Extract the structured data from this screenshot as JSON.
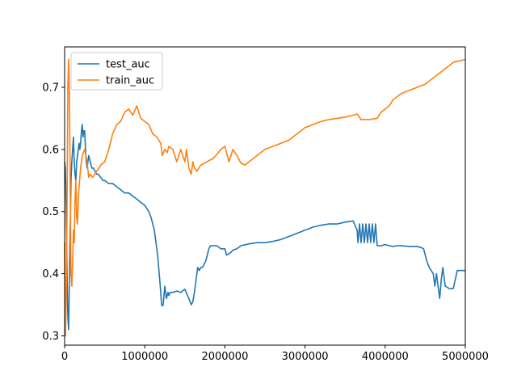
{
  "chart_data": {
    "type": "line",
    "title": "",
    "xlabel": "",
    "ylabel": "",
    "xlim": [
      0,
      5000000
    ],
    "ylim": [
      0.285,
      0.765
    ],
    "grid": false,
    "legend_position": "top-left",
    "x_ticks": [
      0,
      1000000,
      2000000,
      3000000,
      4000000,
      5000000
    ],
    "x_tick_labels": [
      "0",
      "1000000",
      "2000000",
      "3000000",
      "4000000",
      "5000000"
    ],
    "y_ticks": [
      0.3,
      0.4,
      0.5,
      0.6,
      0.7
    ],
    "y_tick_labels": [
      "0.3",
      "0.4",
      "0.5",
      "0.6",
      "0.7"
    ],
    "series": [
      {
        "name": "test_auc",
        "color": "#1f77b4",
        "x": [
          0,
          10000,
          20000,
          30000,
          40000,
          50000,
          60000,
          70000,
          80000,
          90000,
          100000,
          110000,
          120000,
          130000,
          140000,
          150000,
          160000,
          170000,
          180000,
          190000,
          200000,
          210000,
          220000,
          230000,
          240000,
          250000,
          260000,
          270000,
          280000,
          290000,
          300000,
          320000,
          340000,
          360000,
          380000,
          400000,
          420000,
          450000,
          480000,
          500000,
          550000,
          600000,
          650000,
          700000,
          750000,
          800000,
          850000,
          900000,
          950000,
          1000000,
          1050000,
          1080000,
          1100000,
          1120000,
          1140000,
          1160000,
          1180000,
          1200000,
          1210000,
          1220000,
          1230000,
          1250000,
          1270000,
          1290000,
          1300000,
          1320000,
          1350000,
          1400000,
          1450000,
          1500000,
          1550000,
          1580000,
          1600000,
          1620000,
          1640000,
          1650000,
          1660000,
          1680000,
          1700000,
          1720000,
          1740000,
          1760000,
          1780000,
          1800000,
          1820000,
          1850000,
          1900000,
          1950000,
          2000000,
          2020000,
          2050000,
          2080000,
          2100000,
          2150000,
          2200000,
          2300000,
          2400000,
          2500000,
          2600000,
          2700000,
          2800000,
          2900000,
          3000000,
          3100000,
          3200000,
          3300000,
          3400000,
          3500000,
          3600000,
          3650000,
          3660000,
          3680000,
          3700000,
          3720000,
          3740000,
          3760000,
          3780000,
          3800000,
          3820000,
          3840000,
          3860000,
          3880000,
          3900000,
          3950000,
          4000000,
          4050000,
          4100000,
          4150000,
          4200000,
          4300000,
          4400000,
          4450000,
          4480000,
          4500000,
          4520000,
          4550000,
          4600000,
          4620000,
          4640000,
          4660000,
          4680000,
          4700000,
          4720000,
          4750000,
          4800000,
          4850000,
          4900000,
          4950000,
          5000000
        ],
        "y": [
          0.58,
          0.57,
          0.5,
          0.4,
          0.33,
          0.31,
          0.4,
          0.47,
          0.55,
          0.58,
          0.6,
          0.62,
          0.58,
          0.56,
          0.55,
          0.58,
          0.59,
          0.6,
          0.61,
          0.6,
          0.61,
          0.63,
          0.64,
          0.62,
          0.63,
          0.63,
          0.6,
          0.58,
          0.57,
          0.58,
          0.59,
          0.58,
          0.57,
          0.57,
          0.565,
          0.56,
          0.56,
          0.555,
          0.55,
          0.55,
          0.545,
          0.545,
          0.54,
          0.535,
          0.53,
          0.53,
          0.525,
          0.52,
          0.515,
          0.51,
          0.5,
          0.49,
          0.48,
          0.47,
          0.45,
          0.43,
          0.4,
          0.37,
          0.35,
          0.348,
          0.35,
          0.38,
          0.36,
          0.37,
          0.365,
          0.37,
          0.37,
          0.372,
          0.37,
          0.375,
          0.36,
          0.35,
          0.355,
          0.37,
          0.39,
          0.4,
          0.41,
          0.405,
          0.41,
          0.41,
          0.415,
          0.42,
          0.43,
          0.44,
          0.445,
          0.445,
          0.445,
          0.44,
          0.44,
          0.43,
          0.432,
          0.435,
          0.438,
          0.44,
          0.445,
          0.448,
          0.45,
          0.45,
          0.452,
          0.455,
          0.46,
          0.465,
          0.47,
          0.475,
          0.478,
          0.48,
          0.48,
          0.483,
          0.485,
          0.47,
          0.45,
          0.48,
          0.45,
          0.48,
          0.45,
          0.48,
          0.45,
          0.48,
          0.45,
          0.48,
          0.45,
          0.48,
          0.445,
          0.445,
          0.447,
          0.445,
          0.444,
          0.445,
          0.445,
          0.444,
          0.444,
          0.442,
          0.44,
          0.43,
          0.42,
          0.41,
          0.4,
          0.38,
          0.4,
          0.38,
          0.36,
          0.39,
          0.41,
          0.38,
          0.376,
          0.376,
          0.405,
          0.405,
          0.405
        ]
      },
      {
        "name": "train_auc",
        "color": "#ff7f0e",
        "x": [
          0,
          10000,
          20000,
          30000,
          40000,
          50000,
          60000,
          70000,
          80000,
          90000,
          100000,
          110000,
          120000,
          130000,
          140000,
          150000,
          160000,
          170000,
          180000,
          200000,
          220000,
          250000,
          280000,
          300000,
          320000,
          350000,
          400000,
          430000,
          450000,
          500000,
          550000,
          600000,
          650000,
          700000,
          750000,
          800000,
          850000,
          900000,
          950000,
          1000000,
          1050000,
          1100000,
          1150000,
          1200000,
          1220000,
          1250000,
          1280000,
          1300000,
          1350000,
          1400000,
          1450000,
          1500000,
          1520000,
          1550000,
          1580000,
          1600000,
          1620000,
          1650000,
          1700000,
          1750000,
          1800000,
          1850000,
          1900000,
          1950000,
          2000000,
          2050000,
          2100000,
          2150000,
          2200000,
          2250000,
          2300000,
          2400000,
          2500000,
          2600000,
          2700000,
          2800000,
          2900000,
          3000000,
          3100000,
          3200000,
          3300000,
          3400000,
          3500000,
          3600000,
          3650000,
          3700000,
          3800000,
          3900000,
          3950000,
          4000000,
          4050000,
          4100000,
          4150000,
          4200000,
          4300000,
          4400000,
          4500000,
          4550000,
          4600000,
          4650000,
          4700000,
          4750000,
          4800000,
          4850000,
          4900000,
          4950000,
          5000000
        ],
        "y": [
          0.45,
          0.3,
          0.36,
          0.5,
          0.7,
          0.745,
          0.68,
          0.55,
          0.4,
          0.38,
          0.42,
          0.47,
          0.45,
          0.52,
          0.55,
          0.49,
          0.48,
          0.52,
          0.54,
          0.57,
          0.59,
          0.6,
          0.58,
          0.555,
          0.56,
          0.555,
          0.565,
          0.57,
          0.575,
          0.58,
          0.6,
          0.625,
          0.64,
          0.645,
          0.66,
          0.665,
          0.655,
          0.67,
          0.65,
          0.645,
          0.64,
          0.625,
          0.62,
          0.61,
          0.59,
          0.6,
          0.595,
          0.605,
          0.6,
          0.58,
          0.6,
          0.58,
          0.6,
          0.57,
          0.56,
          0.58,
          0.57,
          0.565,
          0.575,
          0.578,
          0.582,
          0.585,
          0.592,
          0.6,
          0.605,
          0.58,
          0.6,
          0.59,
          0.578,
          0.575,
          0.58,
          0.59,
          0.6,
          0.605,
          0.61,
          0.615,
          0.625,
          0.635,
          0.64,
          0.645,
          0.648,
          0.65,
          0.652,
          0.655,
          0.657,
          0.648,
          0.648,
          0.65,
          0.66,
          0.665,
          0.67,
          0.68,
          0.685,
          0.69,
          0.695,
          0.7,
          0.705,
          0.71,
          0.715,
          0.72,
          0.725,
          0.73,
          0.735,
          0.74,
          0.742,
          0.743,
          0.745
        ]
      }
    ]
  }
}
